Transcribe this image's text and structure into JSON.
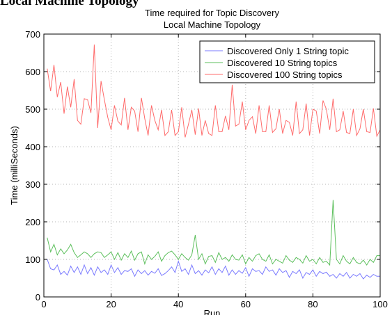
{
  "page_heading": "Local Machine Topology",
  "chart_data": {
    "type": "line",
    "title": "Time required for Topic Discovery",
    "subtitle": "Local Machine Topology",
    "xlabel": "Run",
    "ylabel": "Time (milliSeconds)",
    "xlim": [
      0,
      100
    ],
    "ylim": [
      0,
      700
    ],
    "xticks": [
      0,
      20,
      40,
      60,
      80,
      100
    ],
    "yticks": [
      0,
      100,
      200,
      300,
      400,
      500,
      600,
      700
    ],
    "grid": true,
    "legend_position": "top-right",
    "x": [
      1,
      2,
      3,
      4,
      5,
      6,
      7,
      8,
      9,
      10,
      11,
      12,
      13,
      14,
      15,
      16,
      17,
      18,
      19,
      20,
      21,
      22,
      23,
      24,
      25,
      26,
      27,
      28,
      29,
      30,
      31,
      32,
      33,
      34,
      35,
      36,
      37,
      38,
      39,
      40,
      41,
      42,
      43,
      44,
      45,
      46,
      47,
      48,
      49,
      50,
      51,
      52,
      53,
      54,
      55,
      56,
      57,
      58,
      59,
      60,
      61,
      62,
      63,
      64,
      65,
      66,
      67,
      68,
      69,
      70,
      71,
      72,
      73,
      74,
      75,
      76,
      77,
      78,
      79,
      80,
      81,
      82,
      83,
      84,
      85,
      86,
      87,
      88,
      89,
      90,
      91,
      92,
      93,
      94,
      95,
      96,
      97,
      98,
      99,
      100
    ],
    "series": [
      {
        "name": "Discovered Only 1 String topic",
        "color": "#7b7bff",
        "values": [
          100,
          75,
          72,
          85,
          60,
          68,
          58,
          82,
          65,
          80,
          60,
          85,
          62,
          78,
          58,
          80,
          65,
          72,
          60,
          85,
          65,
          78,
          60,
          70,
          68,
          75,
          55,
          72,
          62,
          70,
          58,
          68,
          63,
          75,
          57,
          62,
          70,
          80,
          65,
          95,
          68,
          75,
          60,
          85,
          62,
          70,
          58,
          72,
          64,
          80,
          60,
          75,
          65,
          82,
          58,
          72,
          60,
          70,
          63,
          78,
          55,
          75,
          68,
          70,
          60,
          80,
          68,
          72,
          58,
          75,
          65,
          70,
          52,
          68,
          62,
          72,
          50,
          65,
          60,
          72,
          55,
          68,
          62,
          66,
          55,
          60,
          50,
          62,
          55,
          65,
          50,
          60,
          55,
          62,
          48,
          58,
          52,
          60,
          55,
          55
        ]
      },
      {
        "name": "Discovered 10 String topics",
        "color": "#5cbf5c",
        "values": [
          158,
          120,
          140,
          112,
          128,
          115,
          125,
          140,
          118,
          105,
          112,
          120,
          115,
          105,
          115,
          120,
          118,
          105,
          112,
          120,
          100,
          118,
          98,
          115,
          105,
          122,
          98,
          115,
          120,
          88,
          112,
          100,
          108,
          120,
          95,
          110,
          118,
          122,
          112,
          100,
          115,
          105,
          98,
          112,
          165,
          100,
          115,
          88,
          108,
          110,
          92,
          118,
          100,
          105,
          95,
          112,
          100,
          98,
          112,
          88,
          105,
          95,
          110,
          115,
          100,
          95,
          112,
          88,
          100,
          95,
          90,
          110,
          98,
          92,
          105,
          100,
          90,
          110,
          95,
          100,
          88,
          105,
          92,
          95,
          85,
          258,
          100,
          88,
          110,
          95,
          88,
          105,
          92,
          88,
          98,
          85,
          100,
          92,
          110,
          110
        ]
      },
      {
        "name": "Discovered 100 String topics",
        "color": "#ff6b6b",
        "values": [
          608,
          548,
          618,
          532,
          572,
          488,
          560,
          505,
          580,
          470,
          460,
          528,
          525,
          490,
          672,
          450,
          575,
          525,
          478,
          445,
          510,
          468,
          458,
          530,
          445,
          505,
          495,
          440,
          530,
          475,
          430,
          510,
          470,
          445,
          498,
          430,
          440,
          498,
          430,
          440,
          505,
          425,
          460,
          498,
          432,
          502,
          430,
          470,
          435,
          430,
          510,
          440,
          440,
          482,
          445,
          565,
          455,
          460,
          520,
          445,
          470,
          480,
          435,
          510,
          440,
          440,
          510,
          438,
          448,
          500,
          435,
          470,
          465,
          430,
          520,
          435,
          445,
          515,
          430,
          500,
          495,
          435,
          523,
          500,
          445,
          528,
          440,
          445,
          495,
          438,
          435,
          500,
          430,
          448,
          500,
          440,
          438,
          502,
          428,
          445
        ]
      }
    ]
  }
}
